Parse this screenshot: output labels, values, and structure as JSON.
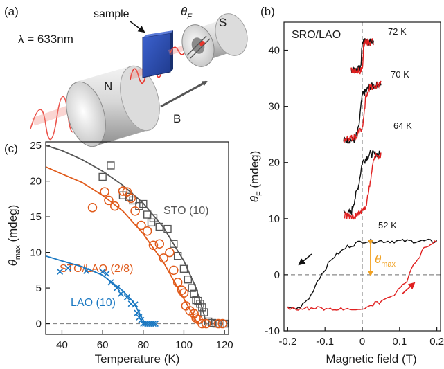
{
  "figure": {
    "panel_a": {
      "label": "(a)",
      "text": {
        "sample": "sample",
        "theta_F": "θ",
        "theta_F_sub": "F",
        "S": "S",
        "wavelength": "λ = 633nm",
        "N": "N",
        "B": "B"
      },
      "colors": {
        "beam": "#e8352c",
        "magnet": "#c8c8c8",
        "sample": "#2e4fb3"
      }
    },
    "panel_b": {
      "label": "(b)",
      "title": "SRO/LAO",
      "ylabel": "θ",
      "ylabel_sub": "F",
      "ylabel_unit": " (mdeg)",
      "xlabel": "Magnetic field (T)",
      "theta_max_label": "θ",
      "theta_max_sub": "max",
      "colors": {
        "up": "#111111",
        "down": "#e02020",
        "arrow": "#f0a020"
      }
    },
    "panel_c": {
      "label": "(c)",
      "ylabel": "θ",
      "ylabel_sub": "max",
      "ylabel_unit": " (mdeg)",
      "xlabel": "Temperature (K)",
      "colors": {
        "STO": "#555555",
        "STO_LAO": "#e05a1a",
        "LAO": "#1a78c2"
      }
    }
  },
  "chart_data": [
    {
      "type": "line",
      "panel": "b",
      "xlabel": "Magnetic field (T)",
      "ylabel": "θF (mdeg)",
      "xlim": [
        -0.21,
        0.21
      ],
      "ylim": [
        -10,
        45
      ],
      "xticks": [
        "-0.2",
        "-0.1",
        "0",
        "0.1",
        "0.2"
      ],
      "yticks": [
        "-10",
        "0",
        "10",
        "20",
        "30",
        "40"
      ],
      "x_tick_values": [
        -0.2,
        -0.1,
        0,
        0.1,
        0.2
      ],
      "y_tick_values": [
        -10,
        0,
        10,
        20,
        30,
        40
      ],
      "annotations": [
        "SRO/LAO",
        "72 K",
        "70 K",
        "64 K",
        "52 K",
        "θmax"
      ],
      "series": [
        {
          "name": "72 K",
          "offset": 39,
          "xrange": [
            -0.03,
            0.03
          ],
          "up": [
            [
              -0.03,
              -2.5
            ],
            [
              -0.01,
              -2.4
            ],
            [
              -0.004,
              -2.0
            ],
            [
              0.0,
              2.5
            ],
            [
              0.01,
              2.6
            ],
            [
              0.03,
              2.4
            ]
          ],
          "down": [
            [
              0.03,
              2.4
            ],
            [
              0.01,
              2.5
            ],
            [
              0.004,
              2.0
            ],
            [
              0.0,
              -2.5
            ],
            [
              -0.01,
              -2.6
            ],
            [
              -0.03,
              -2.4
            ]
          ]
        },
        {
          "name": "70 K",
          "offset": 29,
          "xrange": [
            -0.05,
            0.05
          ],
          "up": [
            [
              -0.05,
              -5
            ],
            [
              -0.02,
              -5
            ],
            [
              -0.01,
              -3
            ],
            [
              0.0,
              3
            ],
            [
              0.02,
              4.5
            ],
            [
              0.05,
              5
            ]
          ],
          "down": [
            [
              0.05,
              5
            ],
            [
              0.02,
              4.5
            ],
            [
              0.01,
              3
            ],
            [
              0.0,
              -3
            ],
            [
              -0.02,
              -4.5
            ],
            [
              -0.05,
              -5
            ]
          ]
        },
        {
          "name": "64 K",
          "offset": 16,
          "xrange": [
            -0.05,
            0.05
          ],
          "up": [
            [
              -0.05,
              -5
            ],
            [
              -0.03,
              -5
            ],
            [
              -0.01,
              0
            ],
            [
              0.0,
              4
            ],
            [
              0.02,
              5.5
            ],
            [
              0.05,
              5.5
            ]
          ],
          "down": [
            [
              0.05,
              5.5
            ],
            [
              0.03,
              5
            ],
            [
              0.02,
              0
            ],
            [
              0.01,
              -4
            ],
            [
              -0.02,
              -5.5
            ],
            [
              -0.05,
              -5.5
            ]
          ]
        },
        {
          "name": "52 K",
          "offset": 0,
          "xrange": [
            -0.2,
            0.2
          ],
          "up": [
            [
              -0.2,
              -6
            ],
            [
              -0.17,
              -6
            ],
            [
              -0.14,
              -4
            ],
            [
              -0.12,
              -1
            ],
            [
              -0.08,
              3
            ],
            [
              -0.04,
              5
            ],
            [
              0.0,
              6
            ],
            [
              0.1,
              6
            ],
            [
              0.2,
              6
            ]
          ],
          "down": [
            [
              0.2,
              6
            ],
            [
              0.17,
              5
            ],
            [
              0.14,
              2
            ],
            [
              0.12,
              -1
            ],
            [
              0.08,
              -4
            ],
            [
              0.04,
              -5
            ],
            [
              0.0,
              -6
            ],
            [
              -0.1,
              -6
            ],
            [
              -0.2,
              -6
            ]
          ]
        }
      ]
    },
    {
      "type": "scatter",
      "panel": "c",
      "xlabel": "Temperature (K)",
      "ylabel": "θmax (mdeg)",
      "xlim": [
        32,
        122
      ],
      "ylim": [
        -1.5,
        25.5
      ],
      "xticks": [
        "40",
        "60",
        "80",
        "100",
        "120"
      ],
      "yticks": [
        "0",
        "5",
        "10",
        "15",
        "20",
        "25"
      ],
      "x_tick_values": [
        40,
        60,
        80,
        100,
        120
      ],
      "y_tick_values": [
        0,
        5,
        10,
        15,
        20,
        25
      ],
      "series": [
        {
          "name": "STO (10)",
          "marker": "square",
          "points": [
            [
              60,
              20.6
            ],
            [
              64,
              22.2
            ],
            [
              70,
              18
            ],
            [
              73,
              17.8
            ],
            [
              75,
              17.3
            ],
            [
              78,
              16.5
            ],
            [
              80,
              16.8
            ],
            [
              82,
              15.3
            ],
            [
              84,
              14.2
            ],
            [
              85,
              14.8
            ],
            [
              88,
              13.6
            ],
            [
              92,
              13.3
            ],
            [
              95,
              11.2
            ],
            [
              97,
              9.5
            ],
            [
              100,
              7.7
            ],
            [
              102,
              6.2
            ],
            [
              104,
              5
            ],
            [
              105,
              4.2
            ],
            [
              106,
              3.3
            ],
            [
              107,
              3.2
            ],
            [
              108,
              2.8
            ],
            [
              109,
              2.3
            ],
            [
              110,
              1.6
            ],
            [
              112,
              0.3
            ],
            [
              114,
              0.1
            ],
            [
              116,
              0
            ],
            [
              118,
              0
            ],
            [
              120,
              0
            ]
          ],
          "fit": [
            [
              32,
              25
            ],
            [
              40,
              24.3
            ],
            [
              50,
              23
            ],
            [
              60,
              21.4
            ],
            [
              70,
              19.4
            ],
            [
              80,
              16.9
            ],
            [
              90,
              13.5
            ],
            [
              100,
              8.8
            ],
            [
              106,
              5
            ],
            [
              110,
              1.2
            ],
            [
              111,
              0
            ]
          ]
        },
        {
          "name": "STO/LAO (2/8)",
          "marker": "circle",
          "points": [
            [
              55,
              16.3
            ],
            [
              61,
              18.5
            ],
            [
              63,
              17.3
            ],
            [
              66,
              16.5
            ],
            [
              70,
              18.6
            ],
            [
              72,
              18.5
            ],
            [
              74,
              17.6
            ],
            [
              76,
              15.8
            ],
            [
              79,
              13.8
            ],
            [
              82,
              13
            ],
            [
              85,
              11
            ],
            [
              88,
              11.2
            ],
            [
              90,
              9.2
            ],
            [
              93,
              10
            ],
            [
              95,
              7.5
            ],
            [
              97,
              5.8
            ],
            [
              99,
              4.7
            ],
            [
              100,
              4.3
            ],
            [
              101,
              2.5
            ],
            [
              103,
              1.8
            ],
            [
              105,
              1.4
            ],
            [
              106,
              0.8
            ],
            [
              107,
              0.6
            ],
            [
              109,
              0
            ],
            [
              111,
              0
            ],
            [
              117,
              0
            ],
            [
              119,
              0
            ]
          ],
          "fit": [
            [
              32,
              22
            ],
            [
              40,
              21
            ],
            [
              50,
              19.8
            ],
            [
              60,
              18
            ],
            [
              70,
              15.8
            ],
            [
              80,
              12.6
            ],
            [
              90,
              8.6
            ],
            [
              100,
              3.5
            ],
            [
              106,
              0.4
            ],
            [
              107,
              0
            ]
          ]
        },
        {
          "name": "LAO (10)",
          "marker": "x",
          "points": [
            [
              39,
              7.3
            ],
            [
              43,
              7.8
            ],
            [
              52,
              7.4
            ],
            [
              60,
              7.3
            ],
            [
              62,
              7
            ],
            [
              64,
              5.8
            ],
            [
              67,
              5
            ],
            [
              69,
              4.2
            ],
            [
              72,
              3.7
            ],
            [
              74,
              2.8
            ],
            [
              76,
              2.7
            ],
            [
              77,
              1.5
            ],
            [
              78,
              0.9
            ],
            [
              79,
              0.5
            ],
            [
              80,
              0
            ],
            [
              81,
              0
            ],
            [
              82,
              0
            ],
            [
              83,
              0
            ],
            [
              84,
              0
            ],
            [
              85,
              0
            ],
            [
              86,
              0
            ]
          ],
          "fit": [
            [
              32,
              9.5
            ],
            [
              40,
              8.8
            ],
            [
              50,
              8
            ],
            [
              60,
              6.8
            ],
            [
              70,
              4.6
            ],
            [
              75,
              3.1
            ],
            [
              79,
              1
            ],
            [
              81,
              0
            ]
          ]
        }
      ]
    }
  ]
}
